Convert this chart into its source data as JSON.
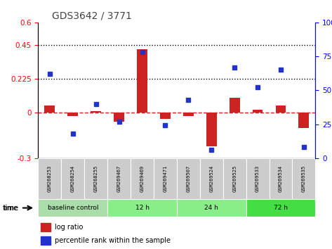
{
  "title": "GDS3642 / 3771",
  "samples": [
    "GSM268253",
    "GSM268254",
    "GSM268255",
    "GSM269467",
    "GSM269469",
    "GSM269471",
    "GSM269507",
    "GSM269524",
    "GSM269525",
    "GSM269533",
    "GSM269534",
    "GSM269535"
  ],
  "log_ratio": [
    0.05,
    -0.02,
    0.01,
    -0.06,
    0.42,
    -0.04,
    -0.02,
    -0.22,
    0.1,
    0.02,
    0.05,
    -0.1
  ],
  "percentile_rank": [
    62,
    18,
    40,
    27,
    78,
    24,
    43,
    6,
    67,
    52,
    65,
    8
  ],
  "ylim_left": [
    -0.3,
    0.6
  ],
  "ylim_right": [
    0,
    100
  ],
  "yticks_left": [
    -0.3,
    0,
    0.225,
    0.45,
    0.6
  ],
  "yticks_right": [
    0,
    25,
    50,
    75,
    100
  ],
  "hlines": [
    0.225,
    0.45
  ],
  "bar_color": "#cc2222",
  "marker_color": "#2233cc",
  "dashed_color": "#cc2222",
  "title_color": "#555555",
  "group_labels": [
    "baseline control",
    "12 h",
    "24 h",
    "72 h"
  ],
  "group_ranges": [
    [
      0,
      3
    ],
    [
      3,
      6
    ],
    [
      6,
      9
    ],
    [
      9,
      12
    ]
  ],
  "group_colors": [
    "#aaddaa",
    "#88ee88",
    "#88ee88",
    "#44dd44"
  ],
  "group_edge_colors": [
    "#aaddaa",
    "#66cc66",
    "#66cc66",
    "#22bb22"
  ],
  "sample_bg": "#cccccc"
}
